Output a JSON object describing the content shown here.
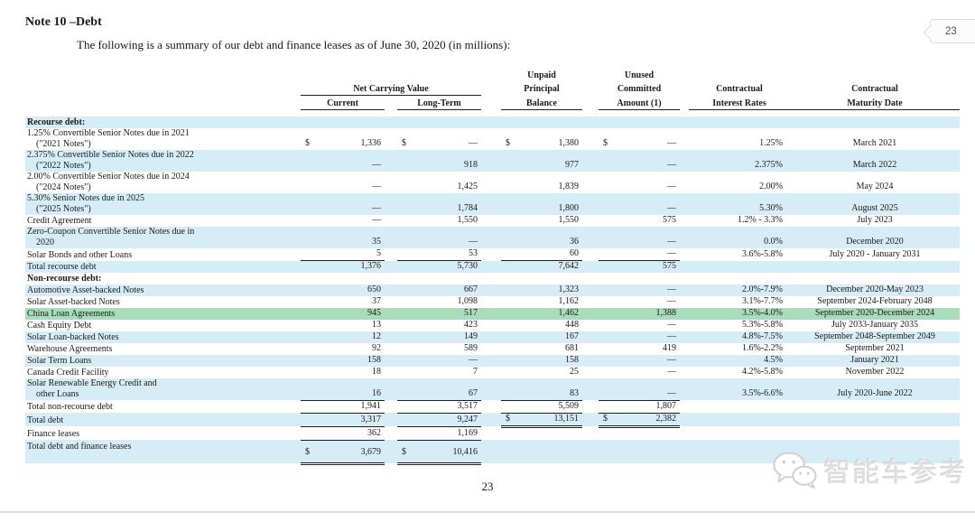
{
  "page": {
    "title": "Note 10 –Debt",
    "subtitle": "The following is a summary of our debt and finance leases as of June 30, 2020 (in millions):",
    "page_number": "23",
    "corner_badge": "23",
    "watermark_text": "智能车参考",
    "watermark_icon": "wechat-logo-icon"
  },
  "colors": {
    "row_blue": "#d6edf7",
    "row_highlight_green": "#a9dcba",
    "rule": "#1f1f1f"
  },
  "table": {
    "header": {
      "net_carrying_value": "Net Carrying Value",
      "current": "Current",
      "long_term": "Long-Term",
      "unpaid_1": "Unpaid",
      "unpaid_2": "Principal",
      "unpaid_3": "Balance",
      "unused_1": "Unused",
      "unused_2": "Committed",
      "unused_3": "Amount (1)",
      "rates_1": "Contractual",
      "rates_2": "Interest Rates",
      "maturity_1": "Contractual",
      "maturity_2": "Maturity Date"
    },
    "rows": [
      {
        "label": "Recourse debt:",
        "bg": "blue",
        "bold": true
      },
      {
        "label": "1.25% Convertible Senior Notes due in 2021",
        "label2": "(\"2021 Notes\")",
        "bg": "white",
        "two": true,
        "c_s": "$",
        "c": "1,336",
        "l_s": "$",
        "l": "—",
        "u_s": "$",
        "u": "1,380",
        "n_s": "$",
        "n": "—",
        "rate": "1.25%",
        "mat": "March 2021"
      },
      {
        "label": "2.375% Convertible Senior Notes due in 2022",
        "label2": "(\"2022 Notes\")",
        "bg": "blue",
        "two": true,
        "c": "—",
        "l": "918",
        "u": "977",
        "n": "—",
        "rate": "2.375%",
        "mat": "March 2022"
      },
      {
        "label": "2.00% Convertible Senior Notes due in 2024",
        "label2": "(\"2024 Notes\")",
        "bg": "white",
        "two": true,
        "c": "—",
        "l": "1,425",
        "u": "1,839",
        "n": "—",
        "rate": "2.00%",
        "mat": "May 2024"
      },
      {
        "label": "5.30% Senior Notes due in 2025",
        "label2": "(\"2025 Notes\")",
        "bg": "blue",
        "two": true,
        "c": "—",
        "l": "1,784",
        "u": "1,800",
        "n": "—",
        "rate": "5.30%",
        "mat": "August 2025"
      },
      {
        "label": "Credit Agreement",
        "bg": "white",
        "c": "—",
        "l": "1,550",
        "u": "1,550",
        "n": "575",
        "rate": "1.2% - 3.3%",
        "mat": "July 2023"
      },
      {
        "label": "Zero-Coupon Convertible Senior Notes due in",
        "label2": "2020",
        "bg": "blue",
        "two": true,
        "c": "35",
        "l": "—",
        "u": "36",
        "n": "—",
        "rate": "0.0%",
        "mat": "December 2020"
      },
      {
        "label": "Solar Bonds and other Loans",
        "bg": "white",
        "c": "5",
        "l": "53",
        "u": "60",
        "n": "—",
        "rate": "3.6%-5.8%",
        "mat": "July 2020 - January 2031",
        "ul": [
          "c",
          "l",
          "u",
          "n"
        ]
      },
      {
        "label": "Total recourse debt",
        "bg": "blue",
        "c": "1,376",
        "l": "5,730",
        "u": "7,642",
        "n": "575"
      },
      {
        "label": "Non-recourse debt:",
        "bg": "white",
        "bold": true
      },
      {
        "label": "Automotive Asset-backed Notes",
        "bg": "blue",
        "c": "650",
        "l": "667",
        "u": "1,323",
        "n": "—",
        "rate": "2.0%-7.9%",
        "mat": "December 2020-May 2023"
      },
      {
        "label": "Solar Asset-backed Notes",
        "bg": "white",
        "c": "37",
        "l": "1,098",
        "u": "1,162",
        "n": "—",
        "rate": "3.1%-7.7%",
        "mat": "September 2024-February 2048"
      },
      {
        "label": "China Loan Agreements",
        "bg": "green",
        "c": "945",
        "l": "517",
        "u": "1,462",
        "n": "1,388",
        "rate": "3.5%-4.0%",
        "mat": "September 2020-December 2024"
      },
      {
        "label": "Cash Equity Debt",
        "bg": "white",
        "c": "13",
        "l": "423",
        "u": "448",
        "n": "—",
        "rate": "5.3%-5.8%",
        "mat": "July 2033-January 2035"
      },
      {
        "label": "Solar Loan-backed Notes",
        "bg": "blue",
        "c": "12",
        "l": "149",
        "u": "167",
        "n": "—",
        "rate": "4.8%-7.5%",
        "mat": "September 2048-September 2049"
      },
      {
        "label": "Warehouse Agreements",
        "bg": "white",
        "c": "92",
        "l": "589",
        "u": "681",
        "n": "419",
        "rate": "1.6%-2.2%",
        "mat": "September 2021"
      },
      {
        "label": "Solar Term Loans",
        "bg": "blue",
        "c": "158",
        "l": "—",
        "u": "158",
        "n": "—",
        "rate": "4.5%",
        "mat": "January 2021"
      },
      {
        "label": "Canada Credit Facility",
        "bg": "white",
        "c": "18",
        "l": "7",
        "u": "25",
        "n": "—",
        "rate": "4.2%-5.8%",
        "mat": "November 2022"
      },
      {
        "label": "Solar Renewable Energy Credit and",
        "label2": "other Loans",
        "bg": "blue",
        "two": true,
        "c": "16",
        "l": "67",
        "u": "83",
        "n": "—",
        "rate": "3.5%-6.6%",
        "mat": "July 2020-June 2022",
        "ul": [
          "c",
          "l",
          "u",
          "n"
        ]
      },
      {
        "label": "Total non-recourse debt",
        "bg": "white",
        "c": "1,941",
        "l": "3,517",
        "u": "5,509",
        "n": "1,807",
        "ul": [
          "c",
          "l",
          "u",
          "n"
        ]
      },
      {
        "label": "Total debt",
        "bg": "blue",
        "pad": true,
        "c": "3,317",
        "l": "9,247",
        "u_s": "$",
        "u": "13,151",
        "n_s": "$",
        "n": "2,382",
        "ul": [
          "c",
          "l"
        ],
        "dl": [
          "u",
          "n"
        ]
      },
      {
        "label": "Finance leases",
        "bg": "white",
        "pad": true,
        "c": "362",
        "l": "1,169",
        "ul": [
          "c",
          "l"
        ]
      },
      {
        "label": "Total debt and finance leases",
        "bg": "blue",
        "tall": true,
        "c_s": "$",
        "c": "3,679",
        "l_s": "$",
        "l": "10,416",
        "dl": [
          "c",
          "l"
        ]
      }
    ]
  }
}
